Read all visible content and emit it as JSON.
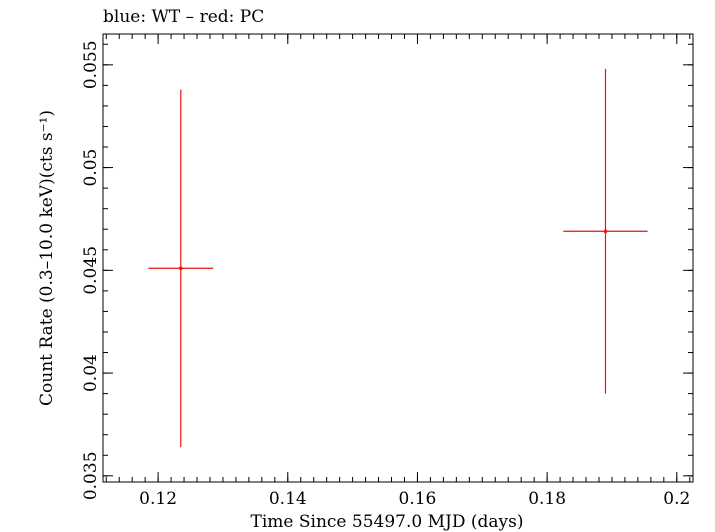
{
  "chart_data": {
    "type": "scatter",
    "title": "blue: WT – red: PC",
    "xlabel": "Time Since 55497.0 MJD (days)",
    "ylabel": "Count Rate (0.3–10.0 keV)(cts s⁻¹)",
    "xlim": [
      0.1115,
      0.2025
    ],
    "ylim": [
      0.0347,
      0.0565
    ],
    "x_ticks": [
      0.12,
      0.14,
      0.16,
      0.18,
      0.2
    ],
    "x_tick_labels": [
      "0.12",
      "0.14",
      "0.16",
      "0.18",
      "0.2"
    ],
    "y_ticks": [
      0.035,
      0.04,
      0.045,
      0.05,
      0.055
    ],
    "y_tick_labels": [
      "0.035",
      "0.04",
      "0.045",
      "0.05",
      "0.055"
    ],
    "grid": false,
    "series": [
      {
        "color": "#ee1111",
        "points": [
          {
            "x": 0.1235,
            "y": 0.0451,
            "xerr_low": 0.005,
            "xerr_high": 0.005,
            "yerr_low": 0.0087,
            "yerr_high": 0.0087
          },
          {
            "x": 0.189,
            "y": 0.0469,
            "xerr_low": 0.0065,
            "xerr_high": 0.0065,
            "yerr_low": 0.0079,
            "yerr_high": 0.0079
          }
        ]
      }
    ]
  }
}
